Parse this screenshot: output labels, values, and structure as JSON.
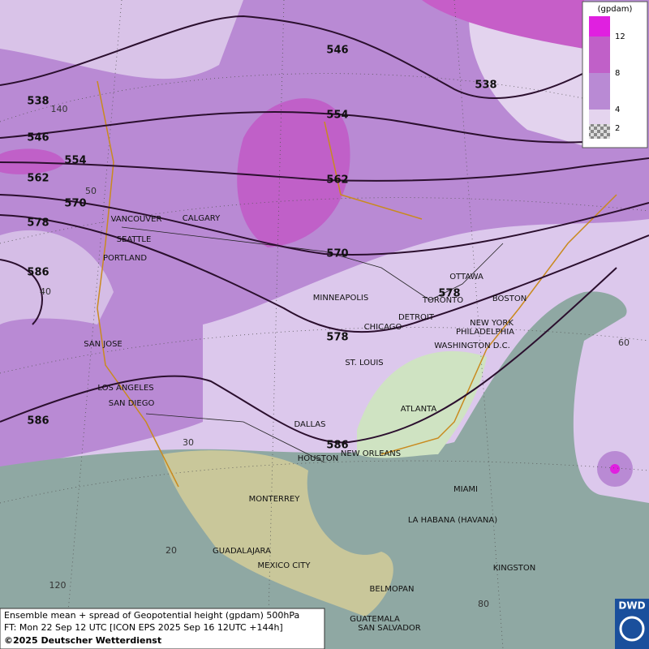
{
  "legend": {
    "title": "(gpdam)",
    "ticks": [
      12,
      8,
      4,
      2
    ]
  },
  "contour_labels": [
    546,
    538,
    538,
    554,
    546,
    554,
    562,
    562,
    570,
    578,
    570,
    586,
    578,
    578,
    586,
    586
  ],
  "cities": [
    "VANCOUVER",
    "CALGARY",
    "SEATTLE",
    "PORTLAND",
    "OTTAWA",
    "MINNEAPOLIS",
    "TORONTO",
    "BOSTON",
    "DETROIT",
    "NEW YORK",
    "CHICAGO",
    "PHILADELPHIA",
    "WASHINGTON D.C.",
    "SAN JOSE",
    "ST. LOUIS",
    "LOS ANGELES",
    "ATLANTA",
    "SAN DIEGO",
    "DALLAS",
    "NEW ORLEANS",
    "HOUSTON",
    "MIAMI",
    "MONTERREY",
    "LA HABANA (HAVANA)",
    "GUADALAJARA",
    "MEXICO CITY",
    "KINGSTON",
    "BELMOPAN",
    "GUATEMALA",
    "SAN SALVADOR"
  ],
  "graticule_labels": [
    140,
    50,
    40,
    60,
    30,
    20,
    120,
    80
  ],
  "footer": {
    "line1": "Ensemble mean + spread of Geopotential height (gpdam) 500hPa",
    "line2": "FT: Mon 22 Sep 12 UTC [ICON EPS 2025 Sep 16 12UTC +144h]",
    "line3": "©2025 Deutscher Wetterdienst"
  },
  "logo": "DWD"
}
